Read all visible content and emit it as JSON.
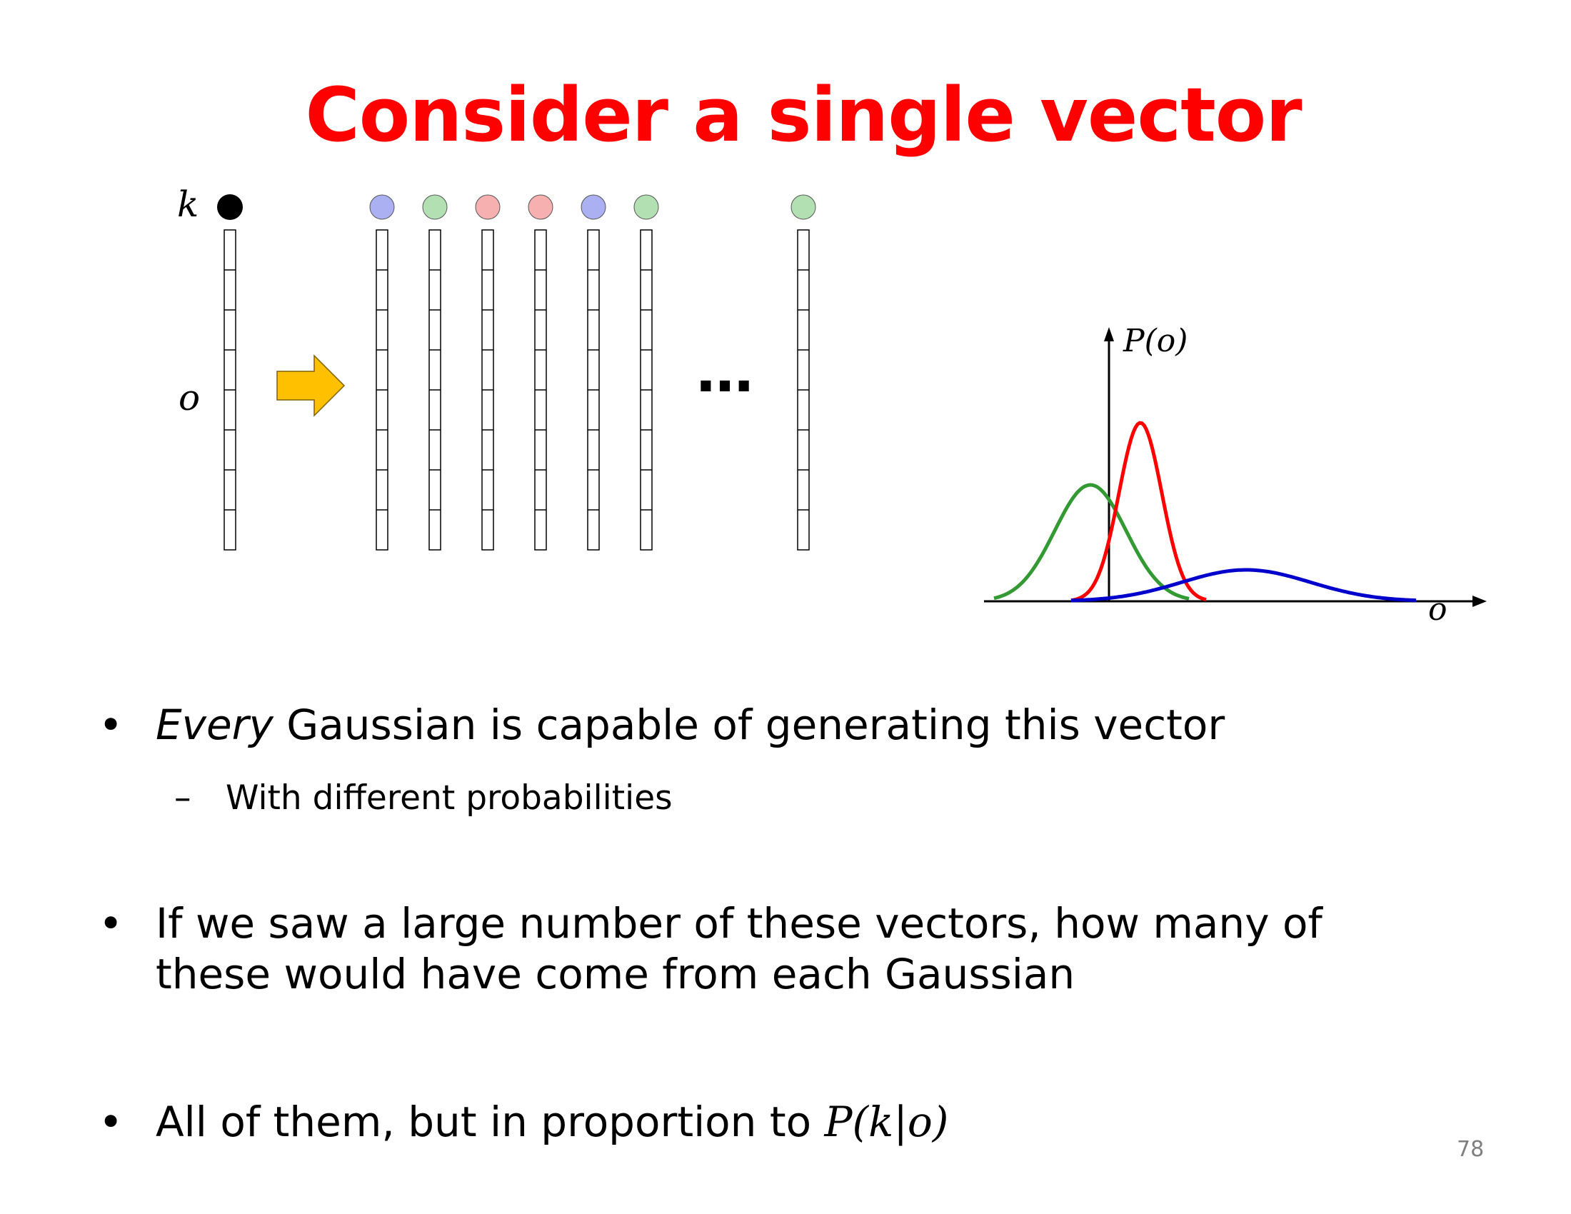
{
  "slide": {
    "title": "Consider a single vector",
    "page_number": "78"
  },
  "diagram": {
    "label_k": "k",
    "label_o": "o",
    "ellipsis": "…",
    "axis_y_label": "P(o)",
    "axis_x_label": "o",
    "vector_colors": [
      "#aab0f2",
      "#b3e0b3",
      "#f7b0b0",
      "#f7b0b0",
      "#aab0f2",
      "#b3e0b3",
      "#b3e0b3"
    ],
    "curve_colors": {
      "green": "#339933",
      "red": "#ff0000",
      "blue": "#0000cc"
    },
    "arrow_color": "#ffc000"
  },
  "bullets": {
    "b1_emph": "Every",
    "b1_rest": " Gaussian is capable of generating this vector",
    "b1_sub": "With different probabilities",
    "b2_line1": "If we saw a large number of these vectors, how many of",
    "b2_line2": "these would have come from each Gaussian",
    "b3_text": "All of them, but in proportion to ",
    "b3_math": "P(k|o)",
    "bullet_char": "•",
    "dash_char": "–"
  }
}
